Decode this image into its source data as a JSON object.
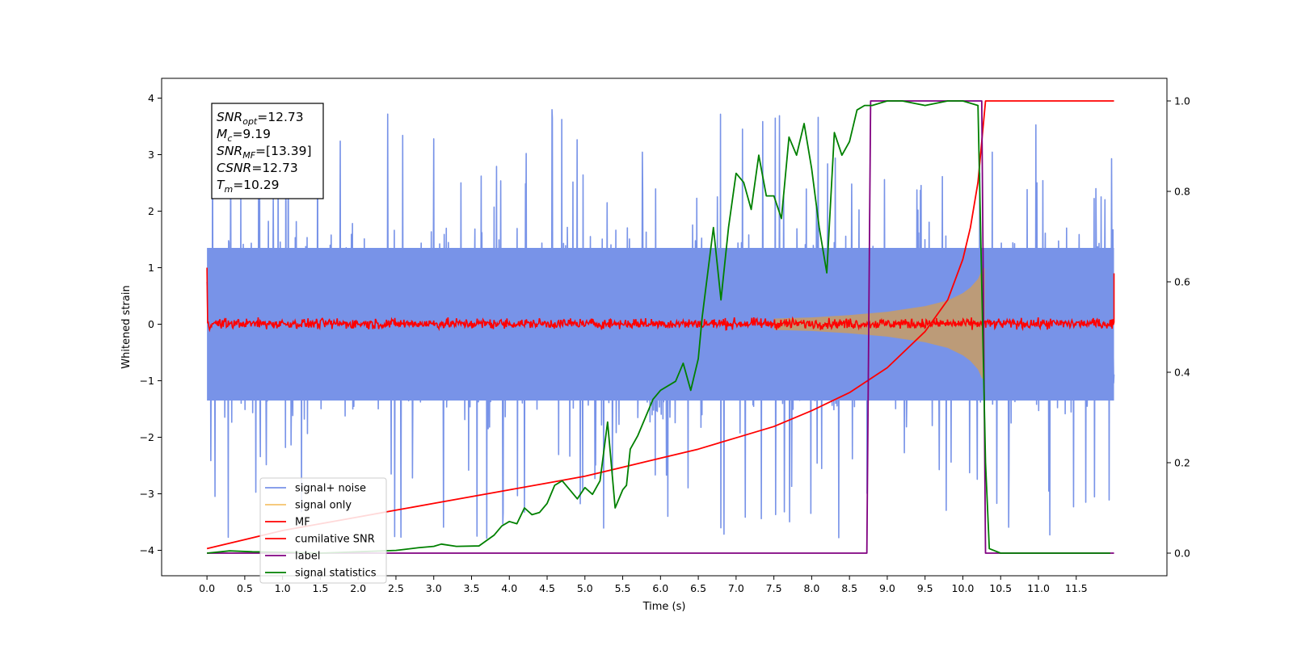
{
  "chart_data": {
    "type": "line",
    "title": "",
    "xlabel": "Time (s)",
    "ylabel": "Whitened strain",
    "xlim": [
      -0.6,
      12.7
    ],
    "ylim": [
      -4.45,
      4.35
    ],
    "y2lim": [
      -0.05,
      1.05
    ],
    "x_ticks": [
      "0.0",
      "0.5",
      "1.0",
      "1.5",
      "2.0",
      "2.5",
      "3.0",
      "3.5",
      "4.0",
      "4.5",
      "5.0",
      "5.5",
      "6.0",
      "6.5",
      "7.0",
      "7.5",
      "8.0",
      "8.5",
      "9.0",
      "9.5",
      "10.0",
      "10.5",
      "11.0",
      "11.5"
    ],
    "y_ticks": [
      "4",
      "3",
      "2",
      "1",
      "0",
      "−1",
      "−2",
      "−3",
      "−4"
    ],
    "y2_ticks": [
      "1.0",
      "0.8",
      "0.6",
      "0.4",
      "0.2",
      "0.0"
    ],
    "annotation": {
      "lines": [
        {
          "sym": "SNR",
          "sub": "opt",
          "val": "=12.73"
        },
        {
          "sym": "M",
          "sub": "c",
          "val": "=9.19"
        },
        {
          "sym": "SNR",
          "sub": "MF",
          "val": "=[13.39]"
        },
        {
          "sym": "CSNR",
          "sub": "",
          "val": "=12.73"
        },
        {
          "sym": "T",
          "sub": "m",
          "val": "=10.29"
        }
      ]
    },
    "legend": {
      "location": "lower left",
      "entries": [
        "signal+ noise",
        "signal only",
        "MF",
        "cumilative SNR",
        "label",
        "signal statistics"
      ]
    },
    "colors": {
      "signal_noise": "#7893e8",
      "signal_only": "#f5c26b",
      "signal_overlap": "#c09b72",
      "mf": "#ff0000",
      "cumulative_snr": "#ff0000",
      "label": "#800080",
      "signal_statistics": "#008000"
    },
    "series": [
      {
        "name": "signal+ noise",
        "axis": "left",
        "style": "dense noise band",
        "x_range": [
          0.0,
          12.0
        ],
        "typical_band": [
          -2.0,
          2.0
        ],
        "max": 3.97,
        "min": -4.2
      },
      {
        "name": "signal only",
        "axis": "left",
        "style": "chirp envelope",
        "x": [
          7.5,
          8.0,
          8.5,
          9.0,
          9.5,
          9.8,
          10.0,
          10.1,
          10.2,
          10.25,
          10.29
        ],
        "amplitude": [
          0.1,
          0.12,
          0.16,
          0.22,
          0.32,
          0.42,
          0.55,
          0.65,
          0.8,
          0.95,
          1.0
        ]
      },
      {
        "name": "MF",
        "axis": "left",
        "style": "noise near zero",
        "x_range": [
          0.0,
          12.0
        ],
        "typical_band": [
          -0.1,
          0.12
        ],
        "edge_value_start": 1.0,
        "edge_value_end": 0.9
      },
      {
        "name": "cumilative SNR",
        "axis": "right",
        "x": [
          0.0,
          0.5,
          1.0,
          1.5,
          2.0,
          2.5,
          3.0,
          3.5,
          4.0,
          4.5,
          5.0,
          5.5,
          6.0,
          6.5,
          7.0,
          7.5,
          8.0,
          8.5,
          9.0,
          9.5,
          9.8,
          10.0,
          10.1,
          10.2,
          10.3,
          12.0
        ],
        "y": [
          0.01,
          0.03,
          0.05,
          0.065,
          0.08,
          0.095,
          0.11,
          0.125,
          0.14,
          0.155,
          0.17,
          0.19,
          0.21,
          0.23,
          0.255,
          0.28,
          0.315,
          0.355,
          0.41,
          0.49,
          0.56,
          0.65,
          0.72,
          0.82,
          1.0,
          1.0
        ]
      },
      {
        "name": "label",
        "axis": "right",
        "x": [
          0.0,
          8.73,
          8.78,
          10.25,
          10.3,
          12.0
        ],
        "y": [
          0.0,
          0.0,
          1.0,
          1.0,
          0.0,
          0.0
        ]
      },
      {
        "name": "signal statistics",
        "axis": "right",
        "x": [
          0.0,
          0.3,
          0.6,
          1.0,
          1.5,
          2.0,
          2.5,
          2.8,
          3.0,
          3.1,
          3.3,
          3.6,
          3.8,
          3.9,
          4.0,
          4.1,
          4.2,
          4.3,
          4.4,
          4.5,
          4.6,
          4.7,
          4.8,
          4.9,
          5.0,
          5.1,
          5.2,
          5.3,
          5.4,
          5.5,
          5.55,
          5.6,
          5.7,
          5.8,
          5.9,
          6.0,
          6.2,
          6.3,
          6.4,
          6.5,
          6.55,
          6.7,
          6.8,
          6.9,
          7.0,
          7.1,
          7.2,
          7.3,
          7.4,
          7.5,
          7.6,
          7.7,
          7.8,
          7.9,
          8.0,
          8.1,
          8.2,
          8.3,
          8.4,
          8.5,
          8.6,
          8.7,
          8.8,
          9.0,
          9.2,
          9.5,
          9.8,
          10.0,
          10.2,
          10.3,
          10.35,
          10.5,
          11.0,
          11.5,
          11.95
        ],
        "y": [
          0.0,
          0.005,
          0.003,
          0.002,
          0.0,
          0.003,
          0.006,
          0.012,
          0.015,
          0.02,
          0.015,
          0.016,
          0.04,
          0.06,
          0.07,
          0.065,
          0.1,
          0.085,
          0.09,
          0.11,
          0.15,
          0.16,
          0.14,
          0.12,
          0.145,
          0.13,
          0.16,
          0.29,
          0.1,
          0.14,
          0.15,
          0.23,
          0.26,
          0.3,
          0.34,
          0.36,
          0.38,
          0.42,
          0.36,
          0.43,
          0.52,
          0.72,
          0.56,
          0.72,
          0.84,
          0.82,
          0.76,
          0.88,
          0.79,
          0.79,
          0.74,
          0.92,
          0.88,
          0.95,
          0.85,
          0.72,
          0.62,
          0.93,
          0.88,
          0.91,
          0.98,
          0.99,
          0.99,
          1.0,
          1.0,
          0.99,
          1.0,
          1.0,
          0.99,
          0.2,
          0.01,
          0.0,
          0.0,
          0.0,
          0.0
        ]
      }
    ]
  }
}
